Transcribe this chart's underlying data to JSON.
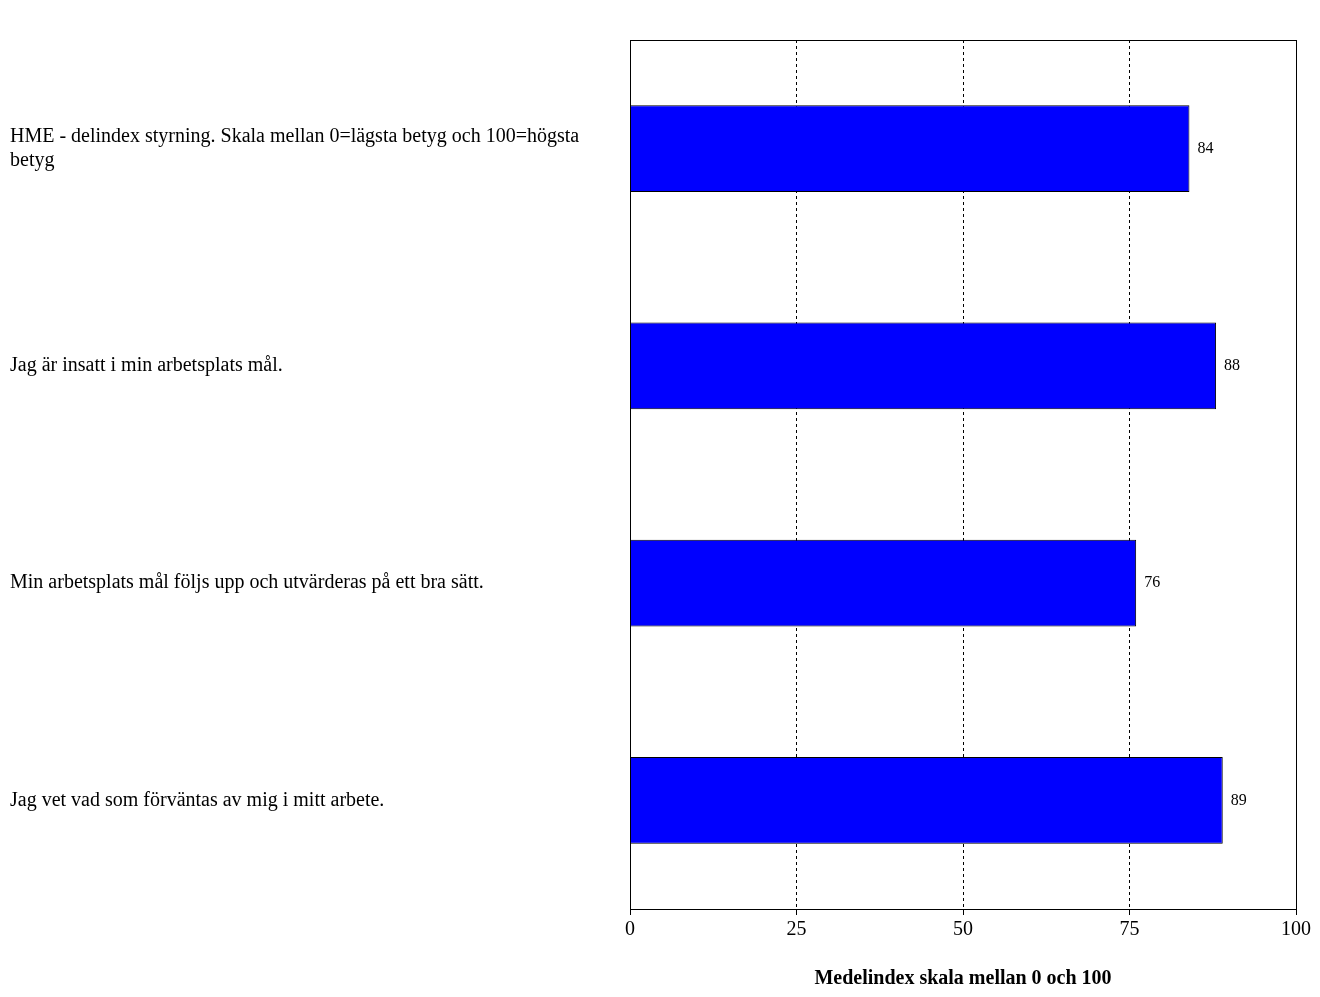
{
  "chart_data": {
    "type": "bar",
    "orientation": "horizontal",
    "xlabel": "Medelindex skala mellan 0 och 100",
    "categories": [
      "HME - delindex styrning. Skala mellan 0=lägsta betyg och 100=högsta betyg",
      "Jag är insatt i min arbetsplats mål.",
      "Min arbetsplats mål följs upp och utvärderas på ett bra sätt.",
      "Jag vet vad som förväntas av mig i mitt arbete."
    ],
    "values": [
      84,
      88,
      76,
      89
    ],
    "color": "#0000ff",
    "xlim": [
      0,
      100
    ],
    "xticks": [
      0,
      25,
      50,
      75,
      100
    ],
    "grid": "x",
    "data_labels": true,
    "legend": false
  }
}
